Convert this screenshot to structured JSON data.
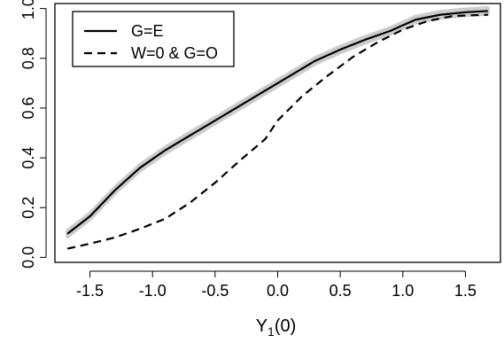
{
  "chart_data": {
    "type": "line",
    "title": "",
    "xlabel": {
      "base": "Y",
      "sub": "1",
      "suffix": "(0)"
    },
    "ylabel": "",
    "xlim": [
      -1.78,
      1.78
    ],
    "ylim": [
      -0.02,
      1.02
    ],
    "xticks": [
      -1.5,
      -1.0,
      -0.5,
      0.0,
      0.5,
      1.0,
      1.5
    ],
    "xtick_labels": [
      "-1.5",
      "-1.0",
      "-0.5",
      "0.0",
      "0.5",
      "1.0",
      "1.5"
    ],
    "yticks": [
      0.0,
      0.2,
      0.4,
      0.6,
      0.8,
      1.0
    ],
    "ytick_labels": [
      "0.0",
      "0.2",
      "0.4",
      "0.6",
      "0.8",
      "1.0"
    ],
    "grid": false,
    "legend_position": "top-left",
    "band_color": "#cccccc",
    "series": [
      {
        "name": "G=E",
        "style": "solid",
        "color": "#000000",
        "band_halfwidth": 0.012,
        "x": [
          -1.68,
          -1.5,
          -1.3,
          -1.1,
          -0.9,
          -0.8,
          -0.6,
          -0.4,
          -0.2,
          0.0,
          0.1,
          0.3,
          0.5,
          0.7,
          0.9,
          1.1,
          1.3,
          1.5,
          1.68
        ],
        "y": [
          0.095,
          0.165,
          0.27,
          0.36,
          0.43,
          0.46,
          0.52,
          0.58,
          0.64,
          0.7,
          0.73,
          0.79,
          0.835,
          0.875,
          0.91,
          0.955,
          0.975,
          0.985,
          0.99
        ]
      },
      {
        "name": "W=0 & G=O",
        "style": "dashed",
        "color": "#000000",
        "x": [
          -1.68,
          -1.5,
          -1.3,
          -1.1,
          -0.9,
          -0.7,
          -0.5,
          -0.3,
          -0.1,
          0.0,
          0.2,
          0.4,
          0.6,
          0.8,
          1.0,
          1.2,
          1.4,
          1.68
        ],
        "y": [
          0.035,
          0.055,
          0.08,
          0.115,
          0.155,
          0.22,
          0.3,
          0.39,
          0.475,
          0.55,
          0.65,
          0.73,
          0.805,
          0.865,
          0.915,
          0.95,
          0.97,
          0.975
        ]
      }
    ]
  }
}
